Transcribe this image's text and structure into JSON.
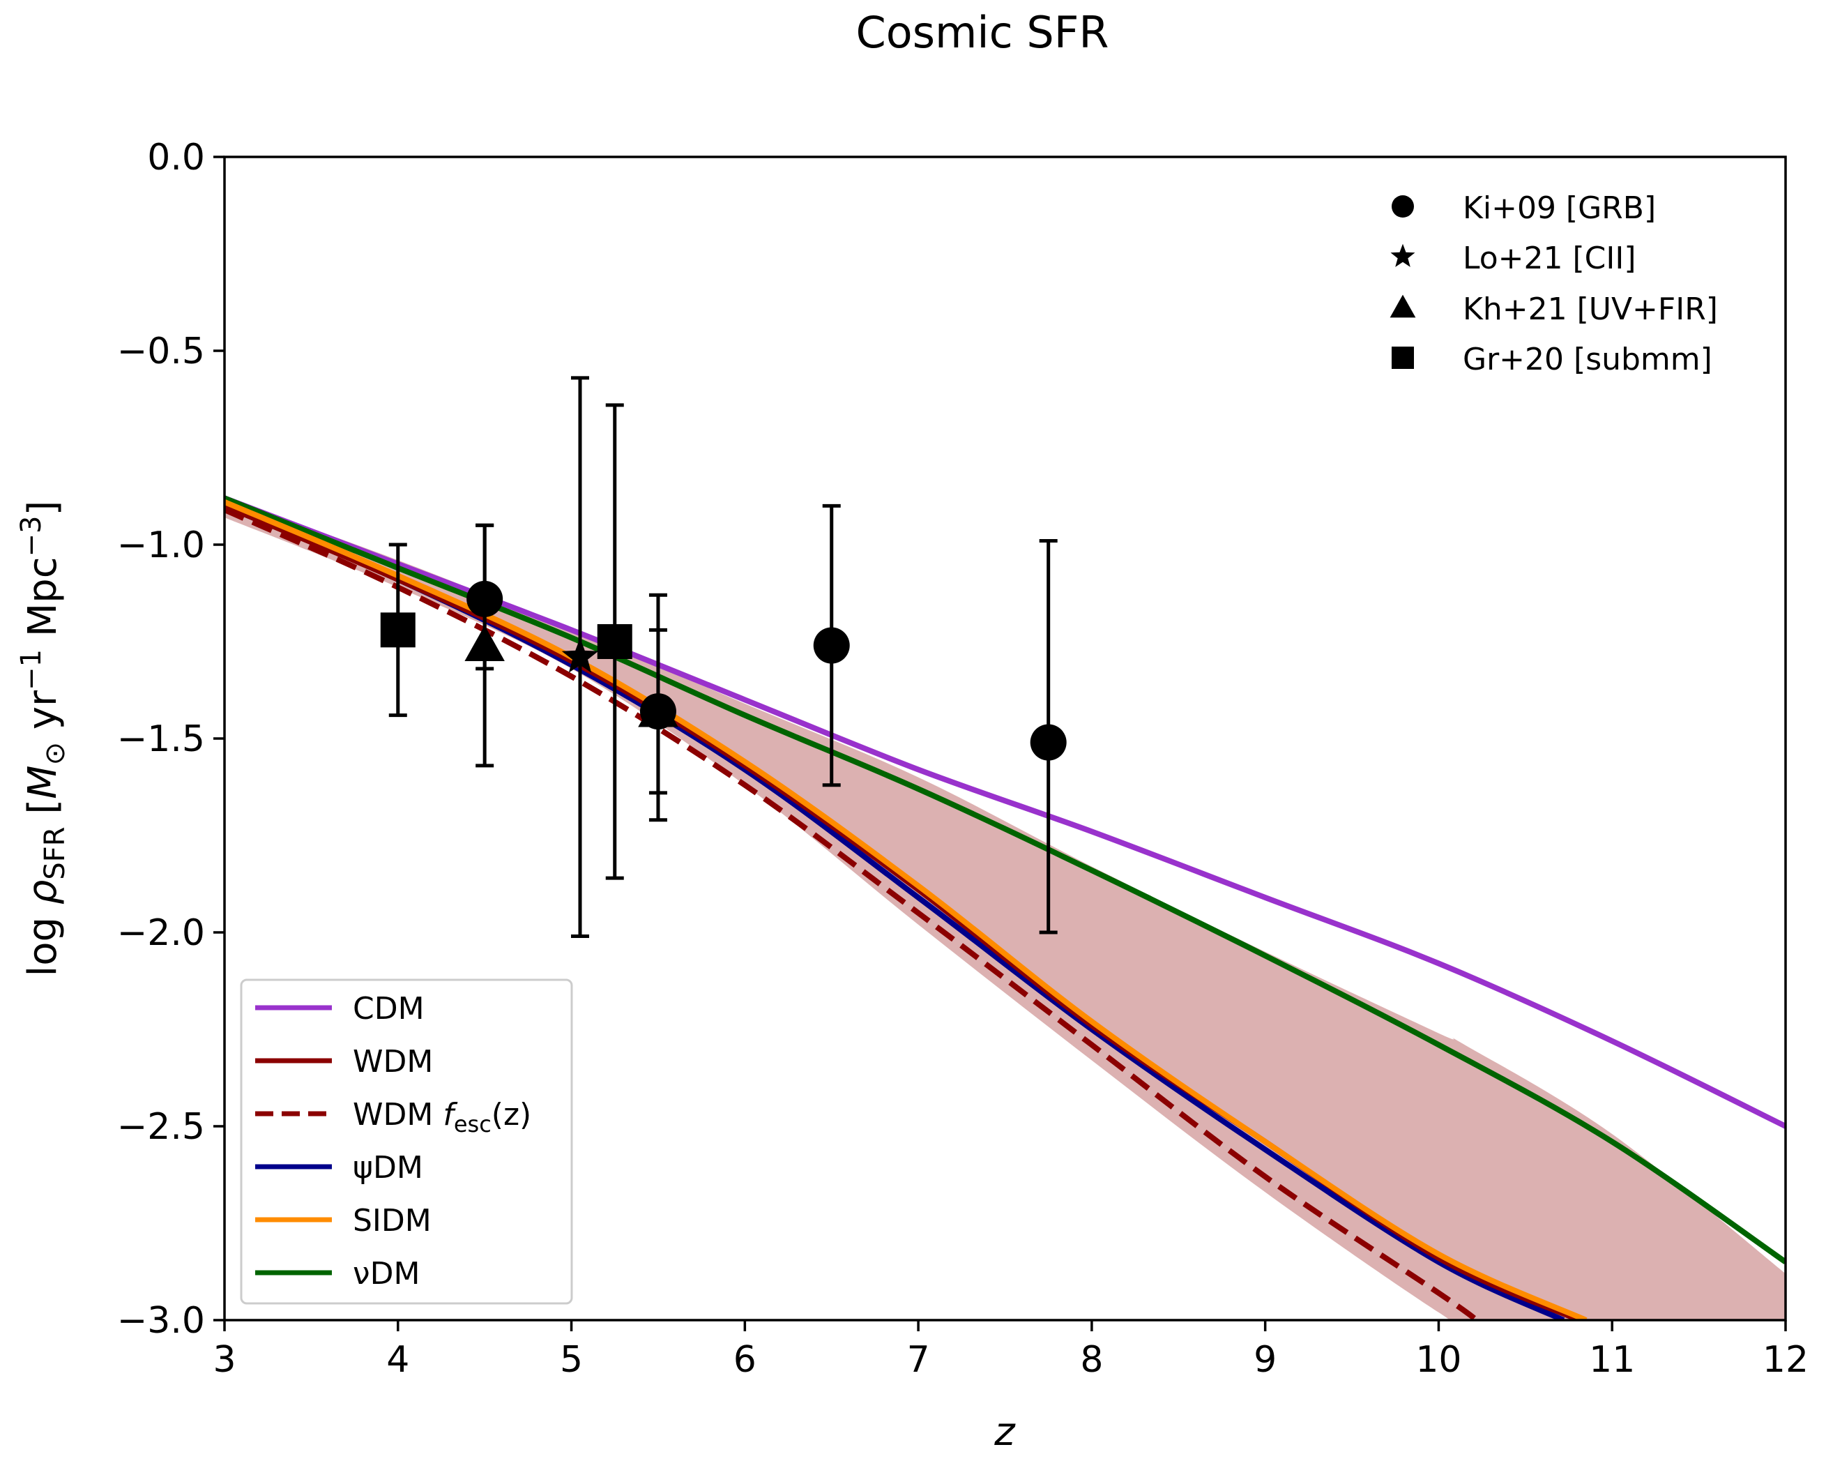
{
  "chart_data": {
    "type": "line",
    "title": "Cosmic SFR",
    "xlabel": "z",
    "ylabel": {
      "prefix": "log ",
      "rho": "ρ",
      "rho_sub": "SFR",
      "unit_open": " [",
      "msun": "M",
      "msun_sub": "⊙",
      "yr": " yr",
      "yr_exp": "−1",
      "mpc": " Mpc",
      "mpc_exp": "−3",
      "unit_close": "]"
    },
    "xlim": [
      3,
      12
    ],
    "ylim": [
      -3.0,
      0.0
    ],
    "xticks": [
      3,
      4,
      5,
      6,
      7,
      8,
      9,
      10,
      11,
      12
    ],
    "xtick_labels": [
      "3",
      "4",
      "5",
      "6",
      "7",
      "8",
      "9",
      "10",
      "11",
      "12"
    ],
    "yticks": [
      0.0,
      -0.5,
      -1.0,
      -1.5,
      -2.0,
      -2.5,
      -3.0
    ],
    "ytick_labels": [
      "0.0",
      "−0.5",
      "−1.0",
      "−1.5",
      "−2.0",
      "−2.5",
      "−3.0"
    ],
    "grid": false,
    "band": {
      "name": "WDM uncertainty",
      "color": "#dcb1b1",
      "x": [
        3,
        4,
        5,
        6,
        7,
        8,
        9,
        10,
        10.15,
        11,
        12
      ],
      "lower": [
        -0.93,
        -1.11,
        -1.32,
        -1.62,
        -1.98,
        -2.33,
        -2.67,
        -2.98,
        -3.0,
        -3.0,
        -3.0
      ],
      "upper": [
        -0.88,
        -1.04,
        -1.22,
        -1.41,
        -1.6,
        -1.83,
        -2.05,
        -2.26,
        -2.29,
        -2.52,
        -2.88
      ]
    },
    "series": [
      {
        "name": "CDM",
        "label_main": "CDM",
        "color": "#9932cc",
        "style": "solid",
        "x": [
          3,
          4,
          5,
          6,
          7,
          8,
          9,
          10,
          11,
          12
        ],
        "y": [
          -0.88,
          -1.05,
          -1.22,
          -1.4,
          -1.58,
          -1.74,
          -1.91,
          -2.08,
          -2.28,
          -2.5
        ]
      },
      {
        "name": "WDM",
        "label_main": "WDM",
        "color": "#8b0000",
        "style": "solid",
        "x": [
          3,
          4,
          5,
          6,
          7,
          8,
          9,
          10,
          10.81
        ],
        "y": [
          -0.9,
          -1.09,
          -1.3,
          -1.57,
          -1.89,
          -2.24,
          -2.54,
          -2.84,
          -3.0
        ]
      },
      {
        "name": "WDM fesc(z)",
        "label_main": "WDM ",
        "label_f": "f",
        "label_sub": "esc",
        "label_tail": "(z)",
        "color": "#8b0000",
        "style": "dashed",
        "x": [
          3,
          4,
          5,
          6,
          7,
          8,
          9,
          10,
          10.22
        ],
        "y": [
          -0.91,
          -1.11,
          -1.34,
          -1.62,
          -1.95,
          -2.29,
          -2.63,
          -2.93,
          -3.0
        ]
      },
      {
        "name": "ψDM",
        "label_main": "ψDM",
        "color": "#00008b",
        "style": "solid",
        "x": [
          3,
          4,
          5,
          6,
          7,
          8,
          9,
          10,
          10.72
        ],
        "y": [
          -0.9,
          -1.09,
          -1.31,
          -1.58,
          -1.91,
          -2.25,
          -2.56,
          -2.85,
          -3.0
        ]
      },
      {
        "name": "SIDM",
        "label_main": "SIDM",
        "color": "#ff8c00",
        "style": "solid",
        "x": [
          3,
          4,
          5,
          6,
          7,
          8,
          9,
          10,
          10.85
        ],
        "y": [
          -0.89,
          -1.08,
          -1.29,
          -1.56,
          -1.88,
          -2.23,
          -2.54,
          -2.83,
          -3.0
        ]
      },
      {
        "name": "νDM",
        "label_main": "νDM",
        "color": "#006400",
        "style": "solid",
        "x": [
          3,
          4,
          5,
          6,
          7,
          8,
          9,
          10,
          11,
          12
        ],
        "y": [
          -0.88,
          -1.06,
          -1.24,
          -1.44,
          -1.63,
          -1.84,
          -2.06,
          -2.29,
          -2.54,
          -2.85
        ]
      }
    ],
    "observations": [
      {
        "name": "Ki+09 [GRB]",
        "marker": "circle",
        "points": [
          {
            "x": 4.5,
            "y": -1.14,
            "ylo": -1.32,
            "yhi": -0.95
          },
          {
            "x": 5.5,
            "y": -1.43,
            "ylo": -1.64,
            "yhi": -1.22
          },
          {
            "x": 6.5,
            "y": -1.26,
            "ylo": -1.62,
            "yhi": -0.9
          },
          {
            "x": 7.75,
            "y": -1.51,
            "ylo": -2.0,
            "yhi": -0.99
          }
        ]
      },
      {
        "name": "Lo+21 [CII]",
        "marker": "star",
        "points": [
          {
            "x": 5.05,
            "y": -1.29,
            "ylo": -2.01,
            "yhi": -0.57
          }
        ]
      },
      {
        "name": "Kh+21 [UV+FIR]",
        "marker": "triangle",
        "points": [
          {
            "x": 4.5,
            "y": -1.26,
            "ylo": -1.57,
            "yhi": -0.95
          },
          {
            "x": 5.5,
            "y": -1.43,
            "ylo": -1.71,
            "yhi": -1.13
          }
        ]
      },
      {
        "name": "Gr+20 [submm]",
        "marker": "square",
        "points": [
          {
            "x": 4.0,
            "y": -1.22,
            "ylo": -1.44,
            "yhi": -1.0
          },
          {
            "x": 5.25,
            "y": -1.25,
            "ylo": -1.86,
            "yhi": -0.64
          }
        ]
      }
    ],
    "legend_lines_loc": "lower left",
    "legend_markers_loc": "upper right"
  }
}
